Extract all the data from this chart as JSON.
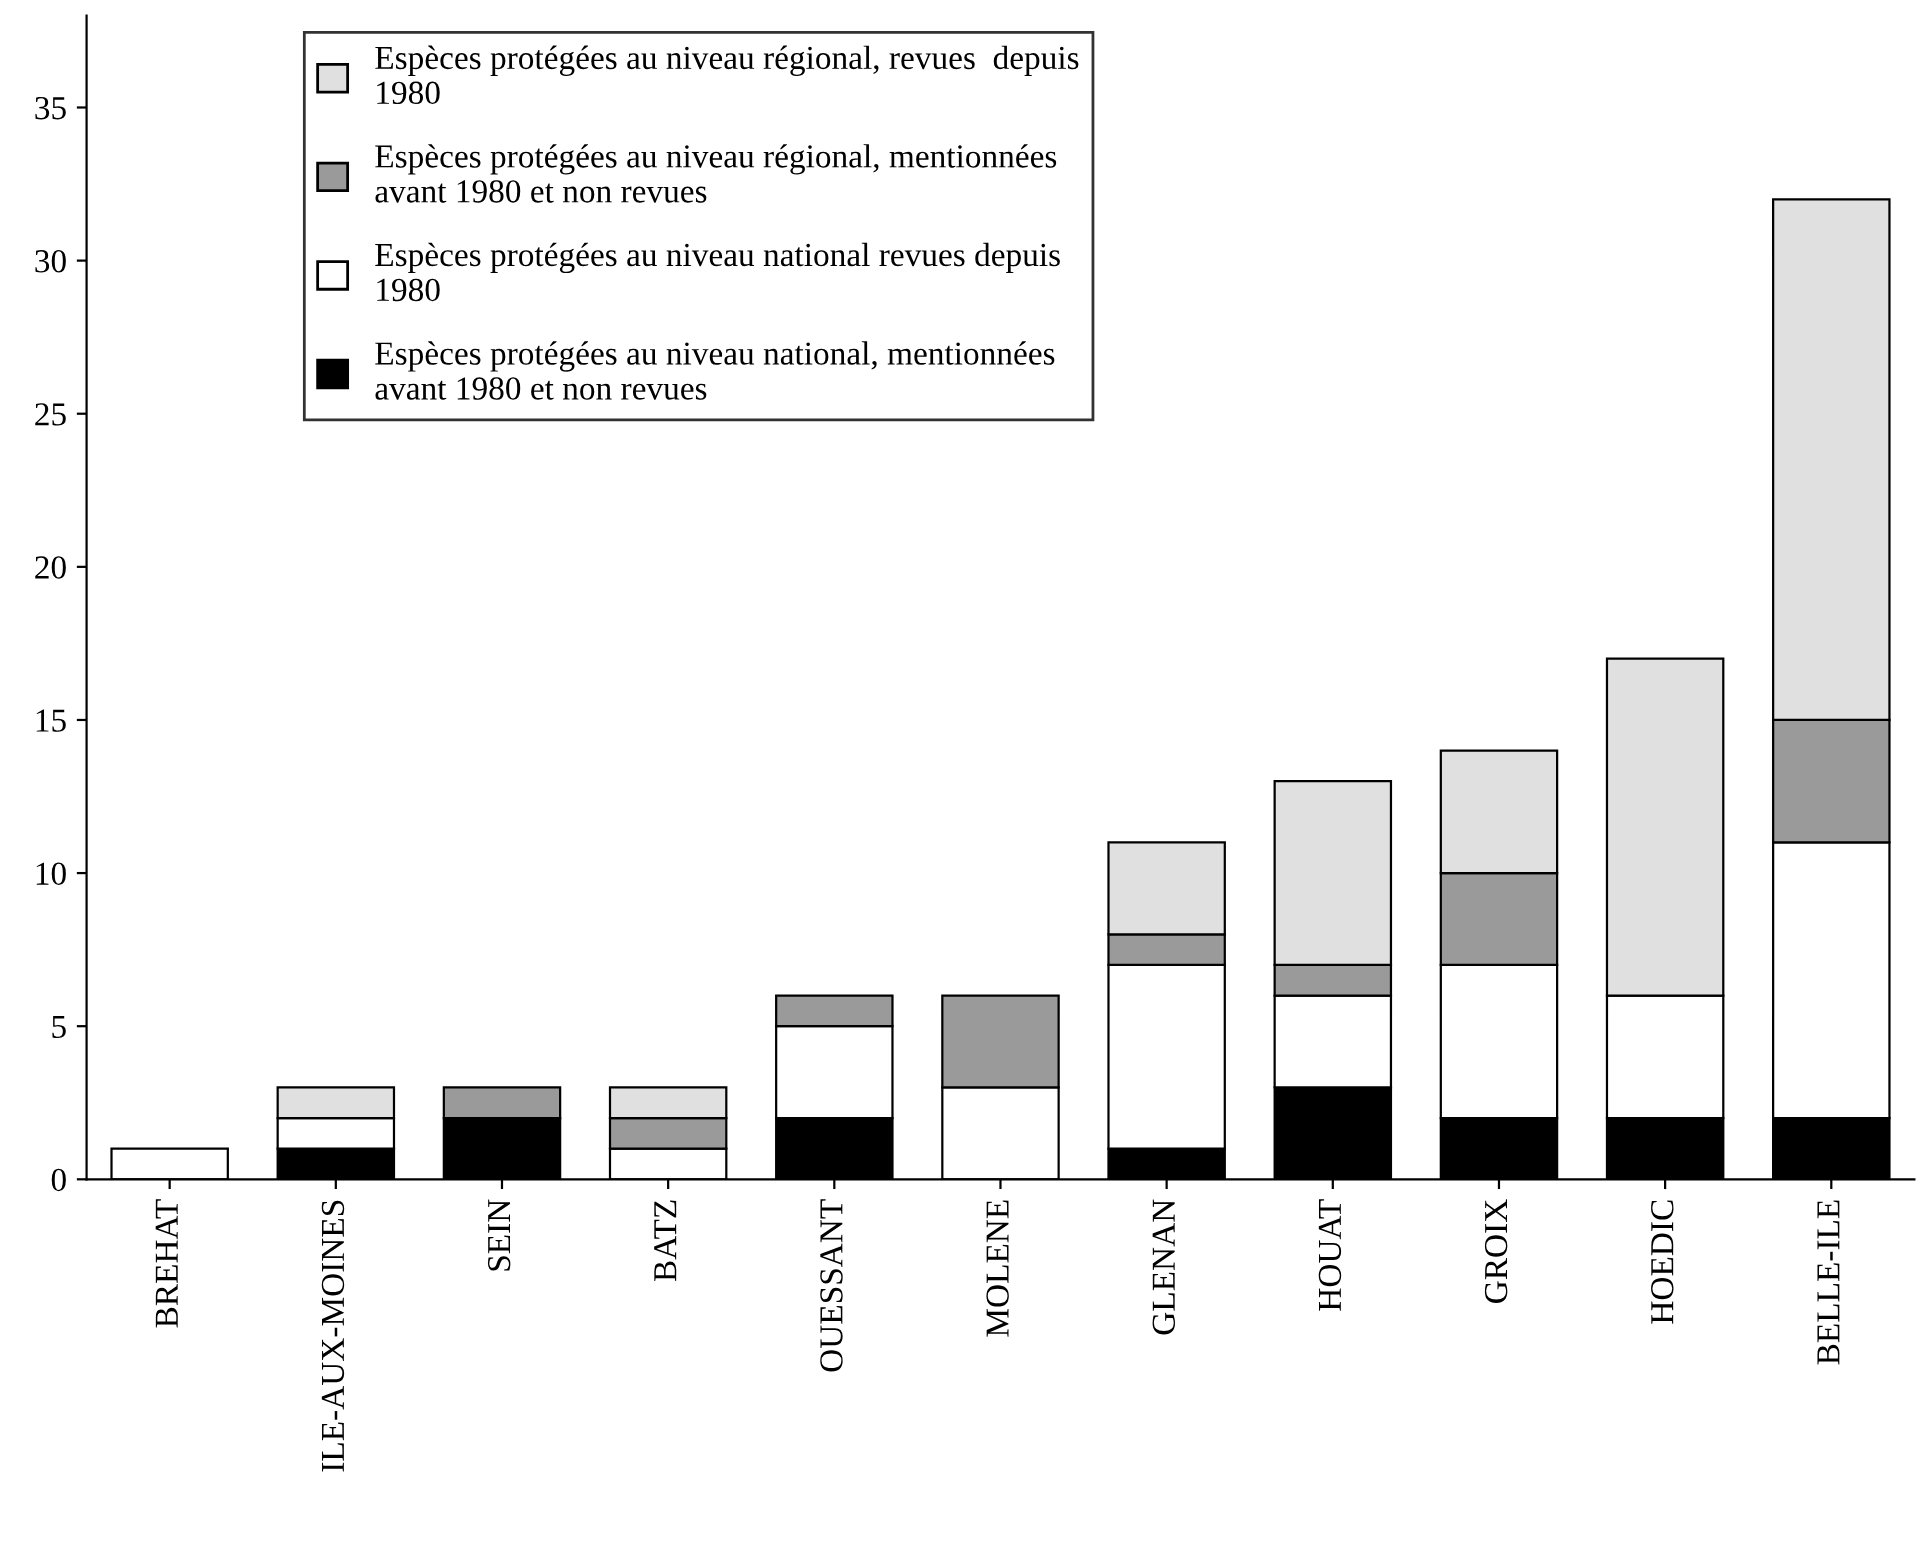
{
  "chart_data": {
    "type": "bar",
    "stacked": true,
    "categories": [
      "BREHAT",
      "ILE-AUX-MOINES",
      "SEIN",
      "BATZ",
      "OUESSANT",
      "MOLENE",
      "GLENAN",
      "HOUAT",
      "GROIX",
      "HOEDIC",
      "BELLE-ILE"
    ],
    "series": [
      {
        "name": "Espèces protégées au niveau national, mentionnées\navant 1980 et non revues",
        "color": "#000000",
        "values": [
          0,
          1,
          2,
          0,
          2,
          0,
          1,
          3,
          2,
          2,
          2
        ]
      },
      {
        "name": "Espèces protégées au niveau national revues depuis\n1980",
        "color": "#ffffff",
        "values": [
          1,
          1,
          0,
          1,
          3,
          3,
          6,
          3,
          5,
          4,
          9
        ]
      },
      {
        "name": "Espèces protégées au niveau régional, mentionnées\navant 1980 et non revues",
        "color": "#9a9a9a",
        "values": [
          0,
          0,
          1,
          1,
          1,
          3,
          1,
          1,
          3,
          0,
          4
        ]
      },
      {
        "name": "Espèces protégées au niveau régional, revues  depuis\n1980",
        "color": "#e0e0e0",
        "values": [
          0,
          1,
          0,
          1,
          0,
          0,
          3,
          6,
          4,
          11,
          17
        ]
      }
    ],
    "ylim": [
      0,
      38
    ],
    "yticks": [
      0,
      5,
      10,
      15,
      20,
      25,
      30,
      35
    ],
    "grid": false,
    "legend": "top left"
  }
}
